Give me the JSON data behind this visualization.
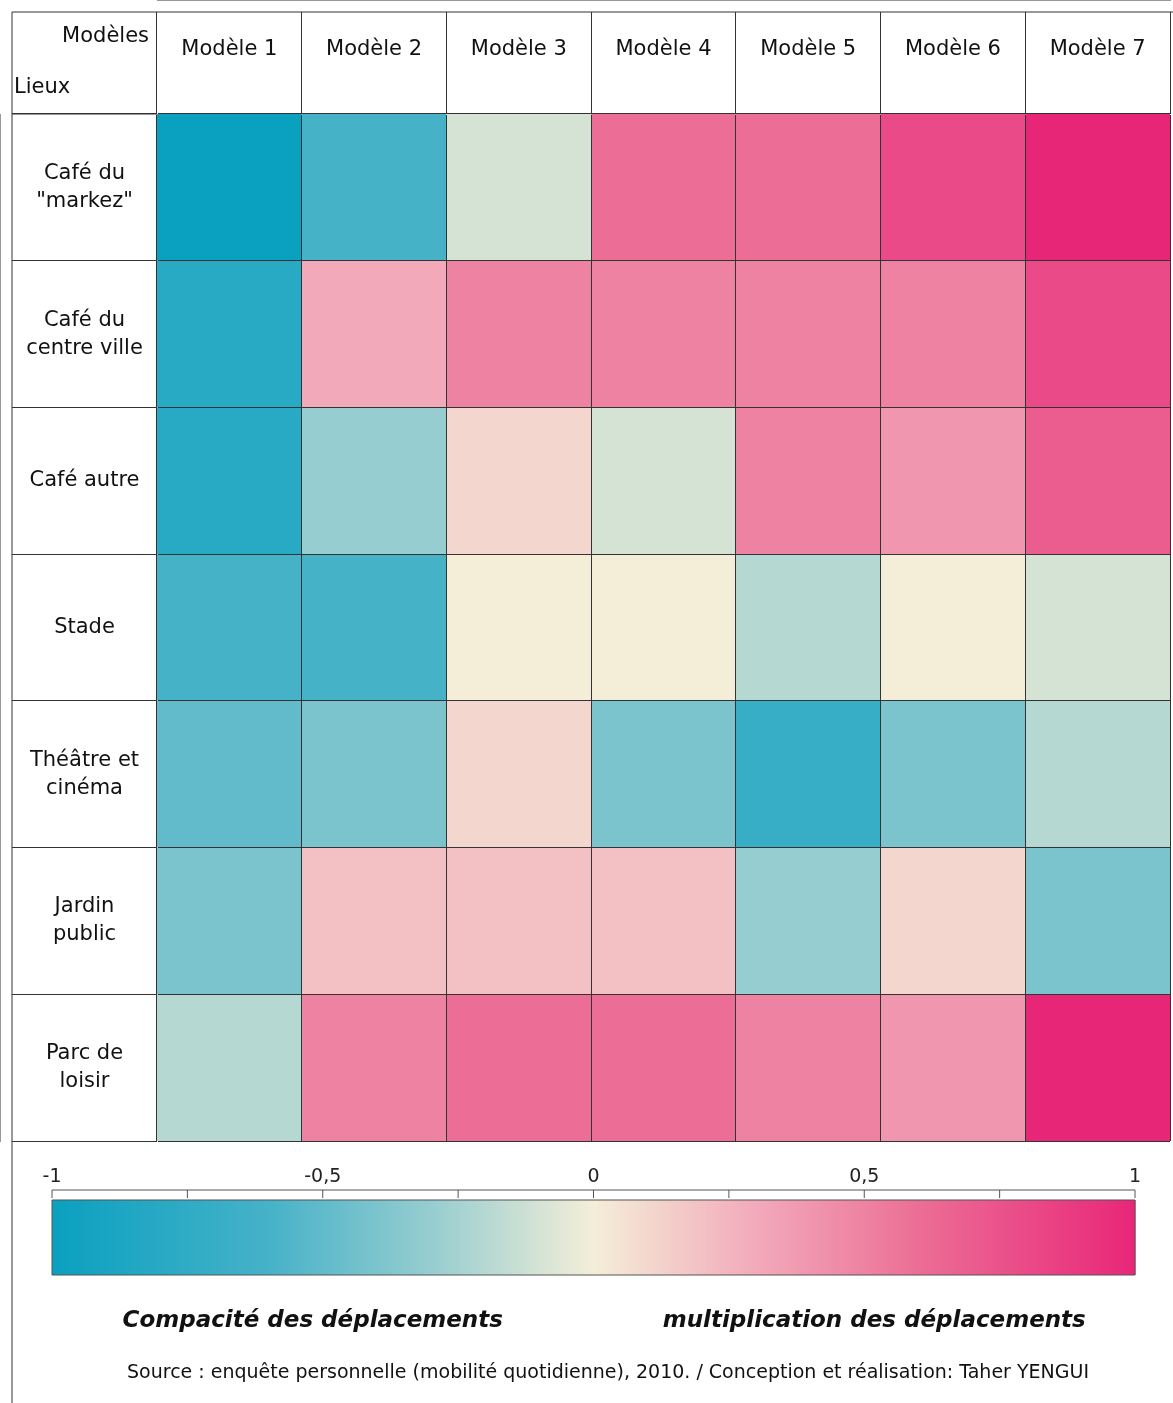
{
  "chart_data": {
    "type": "heatmap",
    "xlabel": "Modèles",
    "ylabel": "Lieux",
    "categories": [
      "Modèle 1",
      "Modèle 2",
      "Modèle 3",
      "Modèle 4",
      "Modèle 5",
      "Modèle 6",
      "Modèle 7"
    ],
    "y_categories": [
      "Café du \"markez\"",
      "Café du centre ville",
      "Café autre",
      "Stade",
      "Théâtre et cinéma",
      "Jardin public",
      "Parc de loisir"
    ],
    "cells": [
      [
        -1,
        -0.6,
        -0.1,
        0.6,
        0.6,
        0.8,
        1
      ],
      [
        -0.8,
        0.3,
        0.5,
        0.5,
        0.5,
        0.5,
        0.8
      ],
      [
        -0.8,
        -0.3,
        0.1,
        -0.1,
        0.5,
        0.4,
        0.7
      ],
      [
        -0.6,
        -0.6,
        0,
        0,
        -0.2,
        0,
        -0.1
      ],
      [
        -0.5,
        -0.4,
        0.1,
        -0.4,
        -0.7,
        -0.4,
        -0.2
      ],
      [
        -0.4,
        0.2,
        0.2,
        0.2,
        -0.3,
        0.1,
        -0.4
      ],
      [
        -0.2,
        0.5,
        0.6,
        0.6,
        0.5,
        0.4,
        1
      ]
    ],
    "clim": [
      -1,
      1
    ],
    "cticks": [
      -1,
      {
        "value": -0.75,
        "label": null
      },
      {
        "value": -0.5,
        "label": "-0,5"
      },
      {
        "value": -0.25,
        "label": null
      },
      0,
      {
        "value": 0.25,
        "label": null
      },
      {
        "value": 0.5,
        "label": "0,5"
      },
      {
        "value": 0.75,
        "label": null
      },
      1
    ],
    "annotations": [
      "Compacité des déplacements",
      "multiplication des déplacements",
      "Source : enquête personnelle (mobilité quotidienne), 2010. / Conception et réalisation: Taher YENGUI"
    ]
  }
}
